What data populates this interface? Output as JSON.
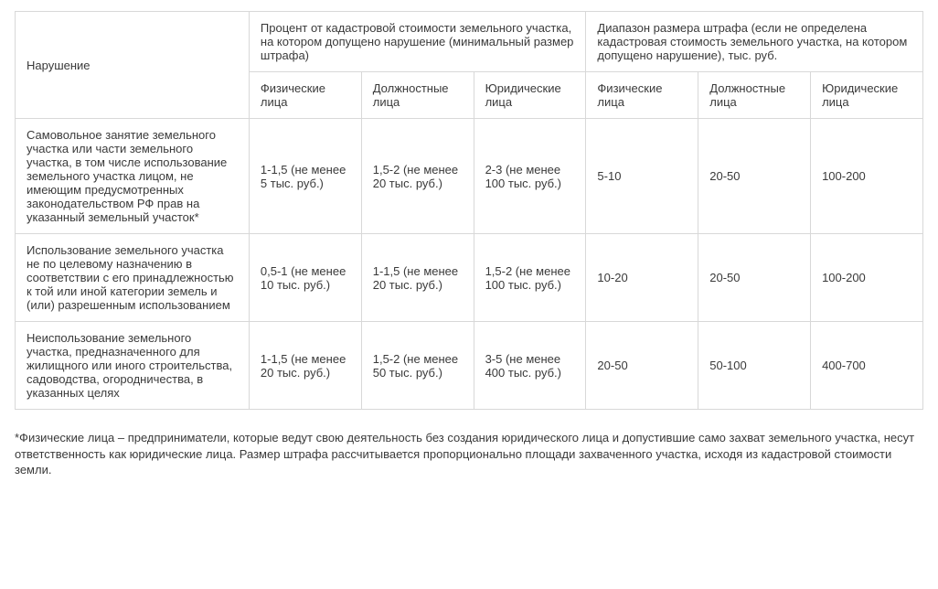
{
  "table": {
    "header": {
      "violation": "Нарушение",
      "group_percent": "Процент от кадастровой стоимости земельного участка, на котором допущено нарушение (минимальный размер штрафа)",
      "group_range": "Диапазон размера штрафа (если не определена кадастровая стоимость земельного участка, на котором допущено нарушение), тыс. руб.",
      "phys": "Физические лица",
      "officials": "Должностные лица",
      "legal": "Юридические лица"
    },
    "rows": [
      {
        "violation": "Самовольное занятие земельного участка или части земельного участка, в том числе использование земельного участка лицом, не имеющим предусмотренных законодательством РФ прав на указанный земельный участок*",
        "pct_phys": "1-1,5 (не менее 5 тыс. руб.)",
        "pct_off": "1,5-2 (не менее 20 тыс. руб.)",
        "pct_legal": "2-3 (не менее 100 тыс. руб.)",
        "rng_phys": "5-10",
        "rng_off": "20-50",
        "rng_legal": "100-200"
      },
      {
        "violation": "Использование земельного участка не по целевому назначению в соответствии с его принадлежностью к той или иной категории земель и (или) разрешенным использованием",
        "pct_phys": "0,5-1 (не менее 10 тыс. руб.)",
        "pct_off": "1-1,5 (не менее 20 тыс. руб.)",
        "pct_legal": "1,5-2 (не менее 100 тыс. руб.)",
        "rng_phys": "10-20",
        "rng_off": "20-50",
        "rng_legal": "100-200"
      },
      {
        "violation": "Неиспользование земельного участка, предназначенного для жилищного или иного строительства, садоводства, огородничества, в указанных целях",
        "pct_phys": "1-1,5 (не менее 20 тыс. руб.)",
        "pct_off": "1,5-2 (не менее 50 тыс. руб.)",
        "pct_legal": "3-5 (не менее 400 тыс. руб.)",
        "rng_phys": "20-50",
        "rng_off": "50-100",
        "rng_legal": "400-700"
      }
    ]
  },
  "footnote": "*Физические лица – предприниматели, которые ведут свою деятельность без создания юридического лица и допустившие само захват земельного участка, несут ответственность как юридические лица. Размер штрафа рассчитывается пропорционально площади захваченного участка, исходя из кадастровой стоимости земли."
}
